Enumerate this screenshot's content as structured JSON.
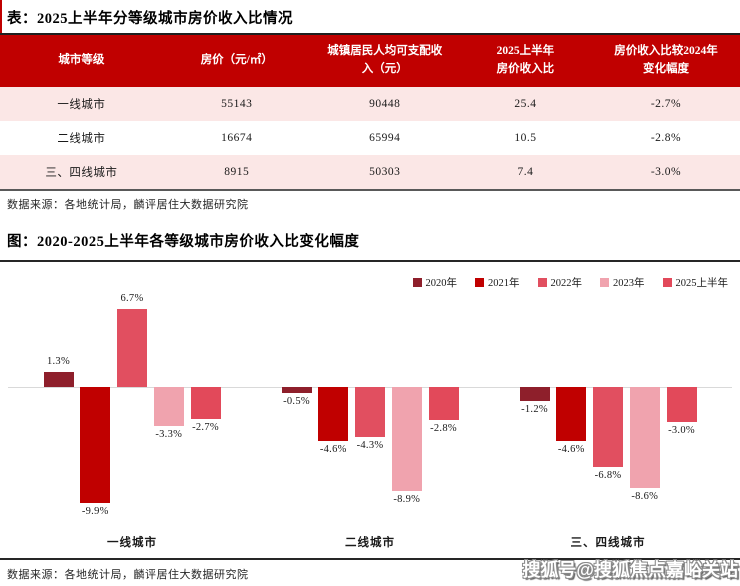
{
  "table_block": {
    "title": "表：2025上半年分等级城市房价收入比情况",
    "source": "数据来源：各地统计局，麟评居住大数据研究院",
    "table": {
      "headers": [
        "城市等级",
        "房价（元/㎡）",
        "城镇居民人均可支配收\n入（元）",
        "2025上半年\n房价收入比",
        "房价收入比较2024年\n变化幅度"
      ],
      "rows": [
        [
          "一线城市",
          "55143",
          "90448",
          "25.4",
          "-2.7%"
        ],
        [
          "二线城市",
          "16674",
          "65994",
          "10.5",
          "-2.8%"
        ],
        [
          "三、四线城市",
          "8915",
          "50303",
          "7.4",
          "-3.0%"
        ]
      ]
    }
  },
  "chart_block": {
    "title": "图：2020-2025上半年各等级城市房价收入比变化幅度",
    "source": "数据来源：各地统计局，麟评居住大数据研究院"
  },
  "watermark": "搜狐号@搜狐焦点嘉峪关站",
  "chart_data": {
    "type": "bar",
    "title": "图：2020-2025上半年各等级城市房价收入比变化幅度",
    "categories": [
      "一线城市",
      "二线城市",
      "三、四线城市"
    ],
    "series": [
      {
        "name": "2020年",
        "color": "#8E1F2B",
        "values": [
          1.3,
          -0.5,
          -1.2
        ]
      },
      {
        "name": "2021年",
        "color": "#C00000",
        "values": [
          -9.9,
          -4.6,
          -4.6
        ]
      },
      {
        "name": "2022年",
        "color": "#E14F60",
        "values": [
          6.7,
          -4.3,
          -6.8
        ]
      },
      {
        "name": "2023年",
        "color": "#F0A3AE",
        "values": [
          -3.3,
          -8.9,
          -8.6
        ]
      },
      {
        "name": "2025上半年",
        "color": "#E2495A",
        "values": [
          -2.7,
          -2.8,
          -3.0
        ]
      }
    ],
    "unit": "%",
    "value_labels": true,
    "ylim": [
      -11,
      8
    ],
    "grid": false,
    "legend_position": "top-right"
  },
  "colors": {
    "table_header_bg": "#C00000",
    "row_alt_bg": "#FBE7E6",
    "accent_red": "#C00000",
    "zero_line": "#D9D9D9",
    "rule_dark": "#262626"
  }
}
